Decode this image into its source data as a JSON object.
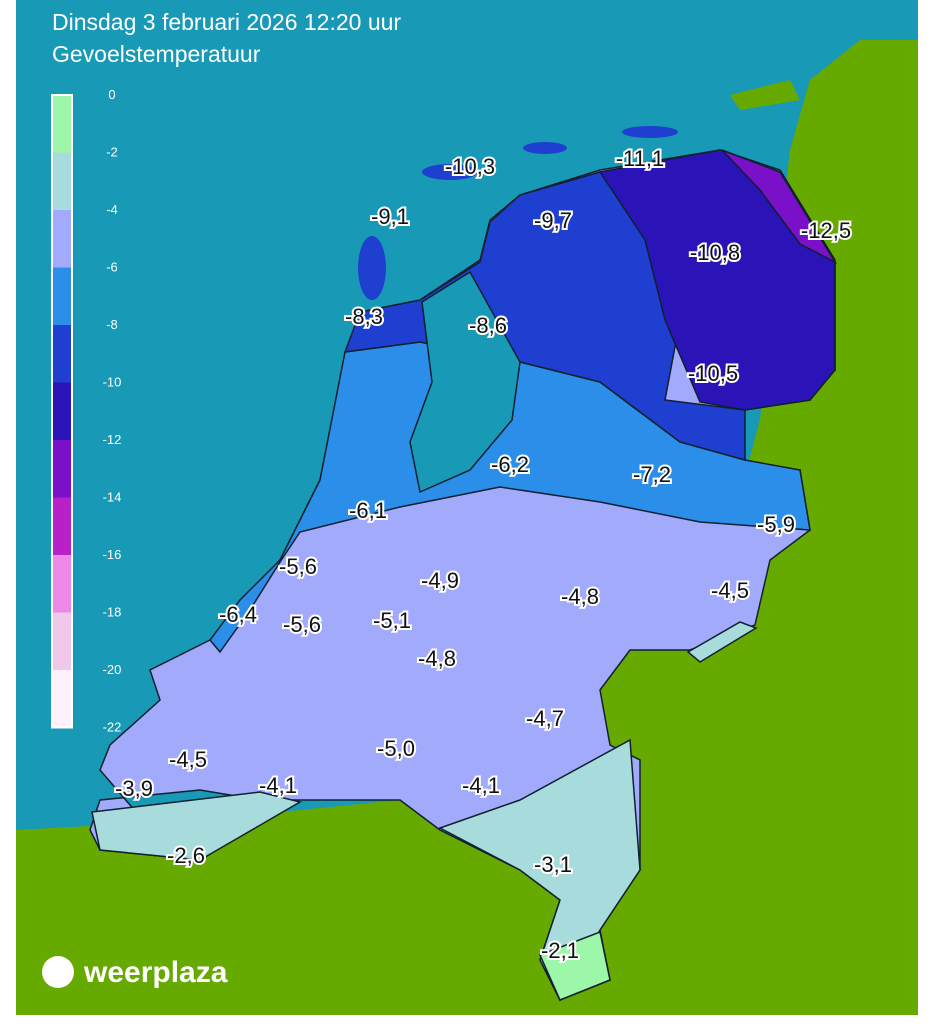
{
  "header": {
    "title": "Dinsdag 3 februari 2026 12:20 uur",
    "subtitle": "Gevoelstemperatuur"
  },
  "legend": {
    "ticks": [
      "0",
      "-2",
      "-4",
      "-6",
      "-8",
      "-10",
      "-12",
      "-14",
      "-16",
      "-18",
      "-20",
      "-22"
    ],
    "colors": [
      "#9cf7a8",
      "#a8dcdc",
      "#a2aafc",
      "#2b8ee8",
      "#1f3fd0",
      "#2a14b8",
      "#7a10c8",
      "#b820c8",
      "#ee88e6",
      "#efc8ea",
      "#fdf2fb"
    ]
  },
  "labels": [
    "-10,3",
    "-11,1",
    "-9,1",
    "-9,7",
    "-12,5",
    "-10,8",
    "-8,3",
    "-8,6",
    "-10,5",
    "-6,2",
    "-7,2",
    "-6,1",
    "-5,9",
    "-5,6",
    "-4,9",
    "-4,8",
    "-4,5",
    "-6,4",
    "-5,6",
    "-5,1",
    "-4,8",
    "-4,7",
    "-4,5",
    "-5,0",
    "-3,9",
    "-4,1",
    "-4,1",
    "-2,6",
    "-3,1",
    "-2,1"
  ],
  "brand": "weerplaza"
}
